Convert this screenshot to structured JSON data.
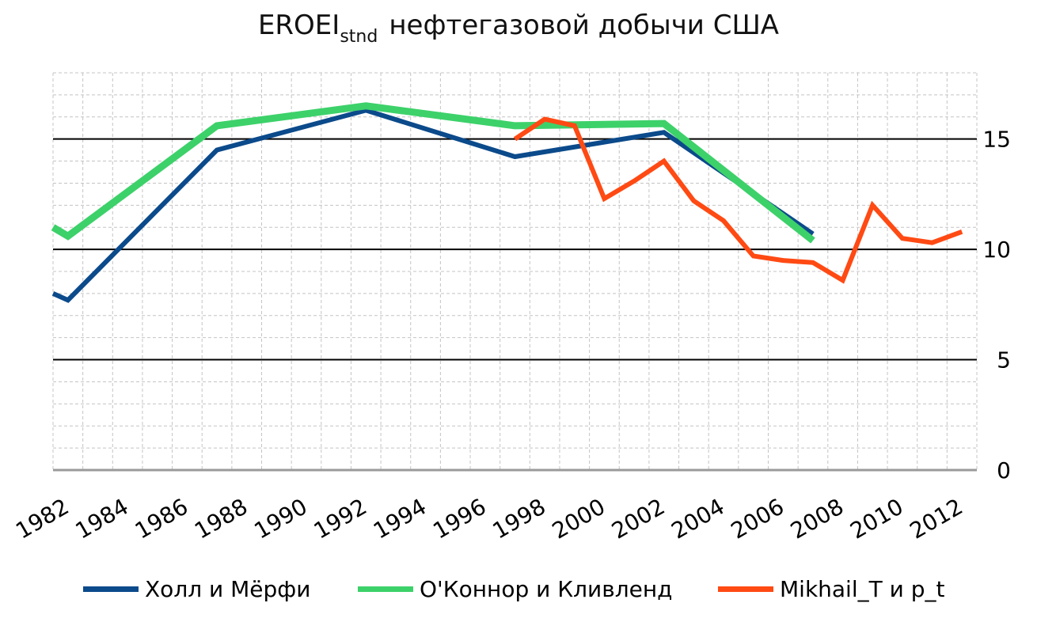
{
  "chart_data": {
    "type": "line",
    "title": "EROEI",
    "title_subscript": "stnd",
    "title_rest": "нефтегазовой добычи США",
    "xlabel": "",
    "ylabel": "",
    "xlim": [
      1982,
      2013
    ],
    "ylim": [
      0,
      18
    ],
    "x_ticks": [
      1982,
      1984,
      1986,
      1988,
      1990,
      1992,
      1994,
      1996,
      1998,
      2000,
      2002,
      2004,
      2006,
      2008,
      2010,
      2012
    ],
    "y_ticks": [
      0,
      5,
      10,
      15
    ],
    "grid": true,
    "legend_position": "bottom",
    "series": [
      {
        "name": "Холл и Мёрфи",
        "color": "#0b4a8b",
        "x": [
          1982,
          1982.5,
          1987.5,
          1992.5,
          1997.5,
          2002.5,
          2007.5
        ],
        "y": [
          8.0,
          7.7,
          14.5,
          16.3,
          14.2,
          15.3,
          10.7
        ]
      },
      {
        "name": "О'Коннор и Кливленд",
        "color": "#3dd16a",
        "x": [
          1982,
          1982.5,
          1987.5,
          1992.5,
          1997.5,
          2002.5,
          2007.5
        ],
        "y": [
          11.0,
          10.6,
          15.6,
          16.5,
          15.6,
          15.7,
          10.4
        ]
      },
      {
        "name": "Mikhail_T и p_t",
        "color": "#ff4a14",
        "x": [
          1997.5,
          1998.5,
          1999.5,
          2000.5,
          2001.5,
          2002.5,
          2003.5,
          2004.5,
          2005.5,
          2006.5,
          2007.5,
          2008.5,
          2009.5,
          2010.5,
          2011.5,
          2012.5
        ],
        "y": [
          15.0,
          15.9,
          15.6,
          12.3,
          13.1,
          14.0,
          12.2,
          11.3,
          9.7,
          9.5,
          9.4,
          8.6,
          12.0,
          10.5,
          10.3,
          10.8
        ]
      }
    ]
  }
}
